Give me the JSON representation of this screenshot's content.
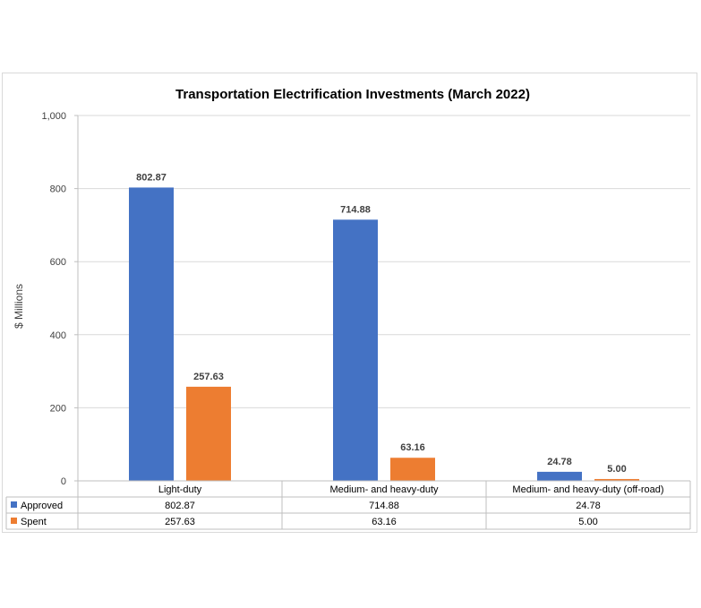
{
  "chart_data": {
    "type": "bar",
    "title": "Transportation Electrification Investments (March 2022)",
    "ylabel": "$ Millions",
    "xlabel": "",
    "ylim": [
      0,
      1000
    ],
    "yticks": [
      "0",
      "200",
      "400",
      "600",
      "800",
      "1,000"
    ],
    "ytick_values": [
      0,
      200,
      400,
      600,
      800,
      1000
    ],
    "grid": true,
    "legend": "data-table",
    "categories": [
      "Light-duty",
      "Medium- and heavy-duty",
      "Medium- and heavy-duty (off-road)"
    ],
    "series": [
      {
        "name": "Approved",
        "color": "#4472c4",
        "values": [
          802.87,
          714.88,
          24.78
        ],
        "labels": [
          "802.87",
          "714.88",
          "24.78"
        ]
      },
      {
        "name": "Spent",
        "color": "#ed7d31",
        "values": [
          257.63,
          63.16,
          5.0
        ],
        "labels": [
          "257.63",
          "63.16",
          "5.00"
        ]
      }
    ]
  }
}
